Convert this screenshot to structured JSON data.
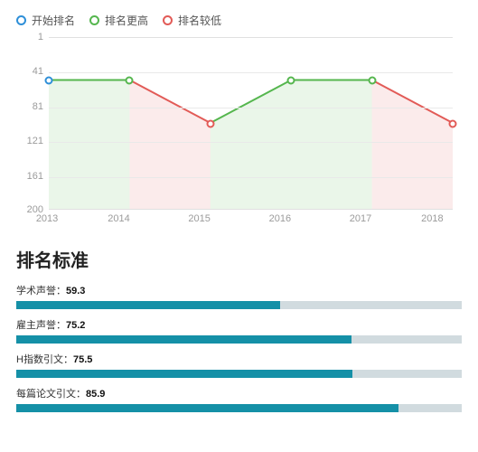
{
  "legend": [
    {
      "label": "开始排名",
      "color": "#2e8fd8"
    },
    {
      "label": "排名更高",
      "color": "#55b64e"
    },
    {
      "label": "排名较低",
      "color": "#e25b57"
    }
  ],
  "chart": {
    "type": "line",
    "ylim": [
      1,
      200
    ],
    "yticks": [
      1,
      41,
      81,
      121,
      161,
      200
    ],
    "xticks": [
      "2013",
      "2014",
      "2015",
      "2016",
      "2017",
      "2018"
    ],
    "series": [
      {
        "year": "2013",
        "value": 50,
        "state": "start",
        "color": "#2e8fd8"
      },
      {
        "year": "2014",
        "value": 50,
        "state": "higher",
        "color": "#55b64e"
      },
      {
        "year": "2015",
        "value": 100,
        "state": "lower",
        "color": "#e25b57"
      },
      {
        "year": "2016",
        "value": 50,
        "state": "higher",
        "color": "#55b64e"
      },
      {
        "year": "2017",
        "value": 50,
        "state": "higher",
        "color": "#55b64e"
      },
      {
        "year": "2018",
        "value": 100,
        "state": "lower",
        "color": "#e25b57"
      }
    ],
    "segment_colors": [
      "#55b64e",
      "#e25b57",
      "#55b64e",
      "#55b64e",
      "#e25b57"
    ],
    "fill_ranges": [
      {
        "from_idx": 0,
        "to_idx": 1,
        "color": "rgba(85,182,78,0.12)"
      },
      {
        "from_idx": 1,
        "to_idx": 2,
        "color": "rgba(226,91,87,0.12)"
      },
      {
        "from_idx": 2,
        "to_idx": 4,
        "color": "rgba(85,182,78,0.12)"
      },
      {
        "from_idx": 4,
        "to_idx": 5,
        "color": "rgba(226,91,87,0.12)"
      }
    ],
    "grid_color": "#e9e9e9",
    "line_width": 2,
    "marker_radius": 4.5,
    "background_color": "#ffffff"
  },
  "criteria": {
    "title": "排名标准",
    "bar_fill_color": "#1590a7",
    "bar_track_color": "#d1dbdf",
    "max": 100,
    "items": [
      {
        "label": "学术声誉",
        "value": 59.3
      },
      {
        "label": "雇主声誉",
        "value": 75.2
      },
      {
        "label": "H指数引文",
        "value": 75.5
      },
      {
        "label": "每篇论文引文",
        "value": 85.9
      }
    ]
  }
}
